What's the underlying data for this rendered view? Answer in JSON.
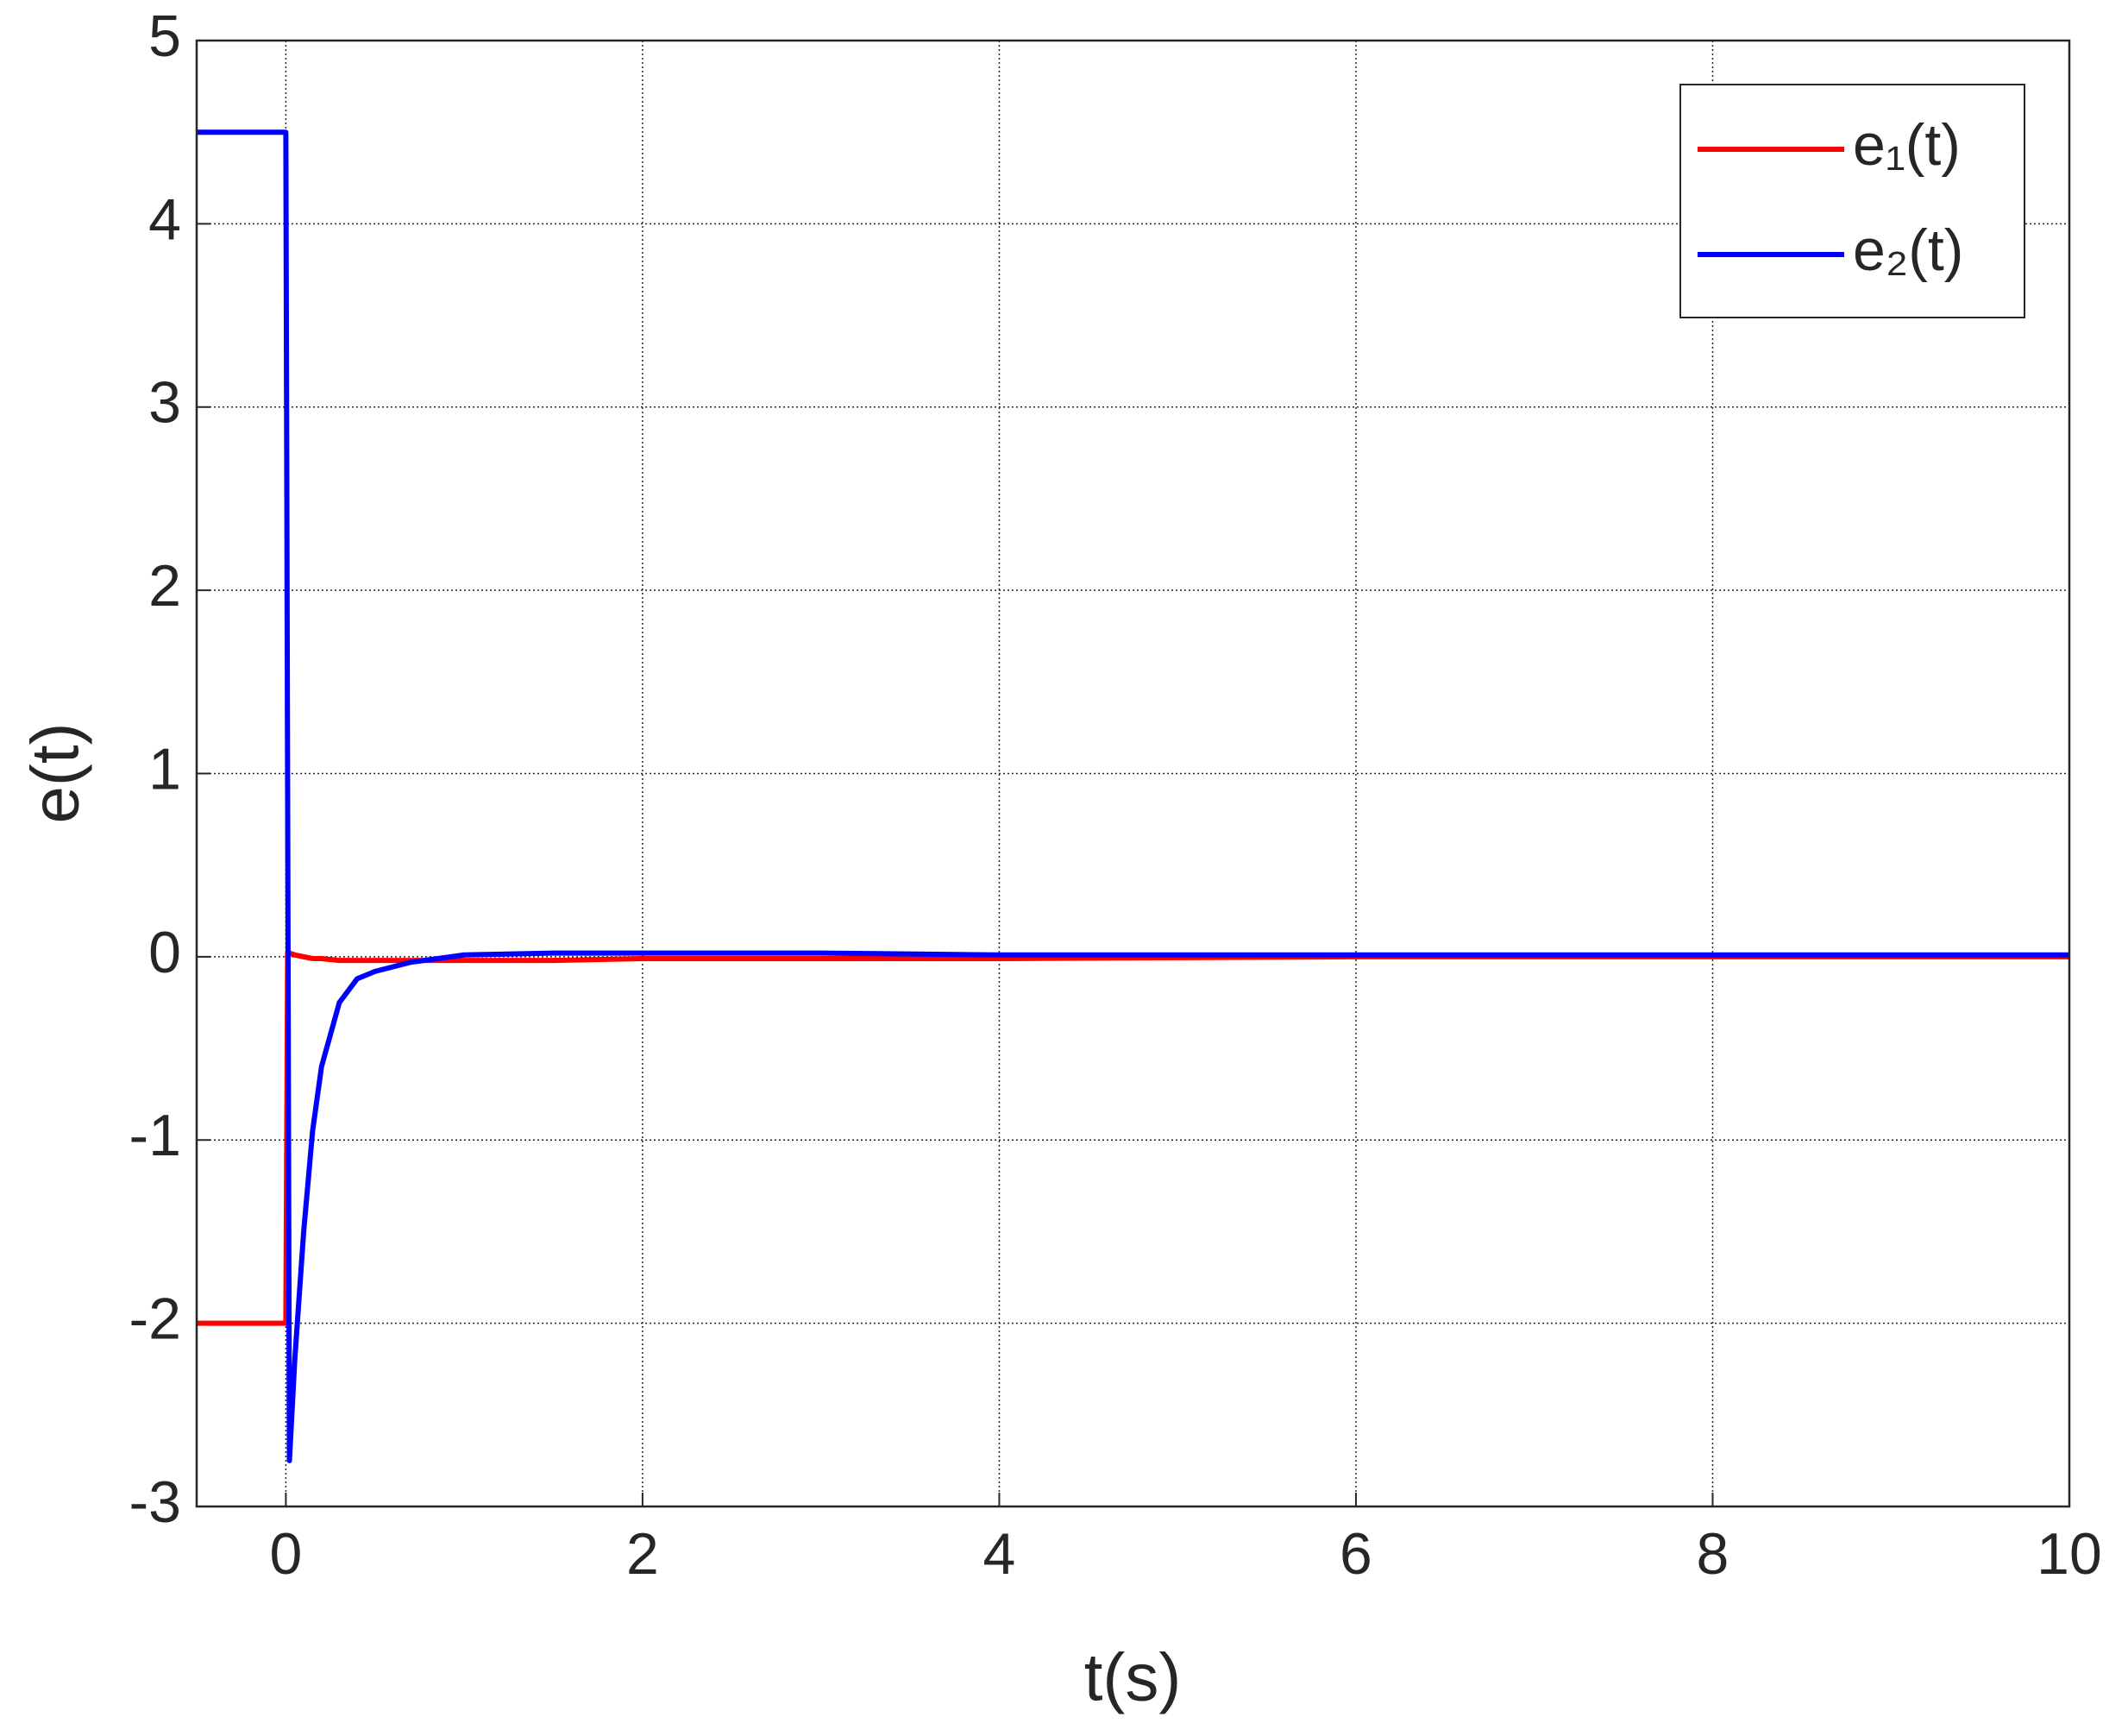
{
  "chart_data": {
    "type": "line",
    "xlabel": "t(s)",
    "ylabel": "e(t)",
    "x": [
      -0.5,
      0,
      0.01,
      0.02,
      0.05,
      0.1,
      0.15,
      0.2,
      0.3,
      0.4,
      0.5,
      0.7,
      1,
      1.5,
      2,
      3,
      4,
      6,
      8,
      10
    ],
    "series": [
      {
        "name": "e₁(t)",
        "color": "#ff0000",
        "values": [
          -2,
          -2,
          0.02,
          0.02,
          0.01,
          0,
          -0.01,
          -0.01,
          -0.02,
          -0.02,
          -0.02,
          -0.02,
          -0.02,
          -0.02,
          -0.01,
          -0.01,
          -0.01,
          0,
          0,
          0
        ]
      },
      {
        "name": "e₂(t)",
        "color": "#0000ff",
        "values": [
          4.5,
          4.5,
          0.9,
          -2.75,
          -2.2,
          -1.5,
          -0.95,
          -0.6,
          -0.25,
          -0.12,
          -0.08,
          -0.03,
          0.01,
          0.02,
          0.02,
          0.02,
          0.01,
          0.01,
          0.01,
          0.01
        ]
      }
    ],
    "xlim": [
      -0.5,
      10
    ],
    "xticks": [
      0,
      2,
      4,
      6,
      8,
      10
    ],
    "ylim": [
      -3,
      5
    ],
    "yticks": [
      -3,
      -2,
      -1,
      0,
      1,
      2,
      3,
      4,
      5
    ],
    "grid": true,
    "legend": "top-right"
  }
}
